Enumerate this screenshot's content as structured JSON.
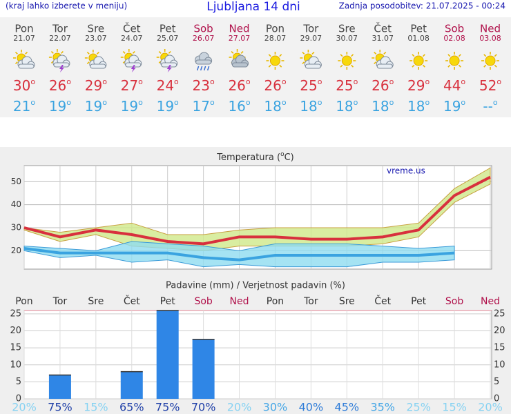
{
  "header": {
    "hint": "(kraj lahko izberete v meniju)",
    "title": "Ljubljana 14 dni",
    "updated": "Zadnja posodobitev: 21.07.2025 - 00:24"
  },
  "deg": "o",
  "days": {
    "names": [
      "Pon",
      "Tor",
      "Sre",
      "Čet",
      "Pet",
      "Sob",
      "Ned",
      "Pon",
      "Tor",
      "Sre",
      "Čet",
      "Pet",
      "Sob",
      "Ned"
    ],
    "dates": [
      "21.07",
      "22.07",
      "23.07",
      "24.07",
      "25.07",
      "26.07",
      "27.07",
      "28.07",
      "29.07",
      "30.07",
      "31.07",
      "01.08",
      "02.08",
      "03.08"
    ],
    "weekend": [
      false,
      false,
      false,
      false,
      false,
      true,
      true,
      false,
      false,
      false,
      false,
      false,
      true,
      true
    ],
    "icons": [
      "sun_cloud",
      "storm",
      "sun_cloud",
      "storm",
      "storm",
      "rain",
      "cloud",
      "sun",
      "sun_cloud",
      "sun",
      "sun_cloud",
      "sun",
      "sun",
      "sun"
    ],
    "max": [
      30,
      26,
      29,
      27,
      24,
      23,
      26,
      26,
      25,
      25,
      26,
      29,
      44,
      52
    ],
    "min": [
      21,
      19,
      19,
      19,
      19,
      17,
      16,
      18,
      18,
      18,
      18,
      18,
      19,
      "--"
    ]
  },
  "temperature": {
    "title_a": "Temperatura (",
    "title_b": "C)",
    "watermark": "vreme.us",
    "ylim": [
      12,
      57
    ],
    "yticks": [
      20,
      30,
      40,
      50
    ],
    "max_band": {
      "high": [
        30,
        28,
        30,
        32,
        27,
        27,
        29,
        30,
        30,
        30,
        30,
        32,
        47,
        56
      ],
      "low": [
        29,
        24,
        27,
        22,
        21,
        20,
        22,
        22,
        22,
        22,
        23,
        26,
        41,
        49
      ],
      "color": "#cfe88a"
    },
    "min_band": {
      "high": [
        22,
        21,
        20,
        24,
        23,
        22,
        20,
        23,
        23,
        23,
        22,
        21,
        22
      ],
      "low": [
        20,
        17,
        18,
        15,
        16,
        13,
        14,
        13,
        13,
        13,
        15,
        15,
        16
      ],
      "color": "#8fdcf0"
    },
    "max_color": "#d8303d",
    "min_color": "#3aa3e0"
  },
  "precip": {
    "title": "Padavine (mm) / Verjetnost padavin (%)",
    "ylim": [
      0,
      26
    ],
    "yticks": [
      0,
      5,
      10,
      15,
      20,
      25
    ],
    "values": [
      0,
      7,
      0,
      8,
      26,
      17.5,
      0,
      0,
      0,
      0,
      0,
      0,
      0,
      0
    ],
    "probability_labels": [
      "20%",
      "75%",
      "15%",
      "65%",
      "75%",
      "70%",
      "20%",
      "30%",
      "40%",
      "45%",
      "35%",
      "25%",
      "15%",
      "20%"
    ],
    "color": "#2f86e6"
  }
}
